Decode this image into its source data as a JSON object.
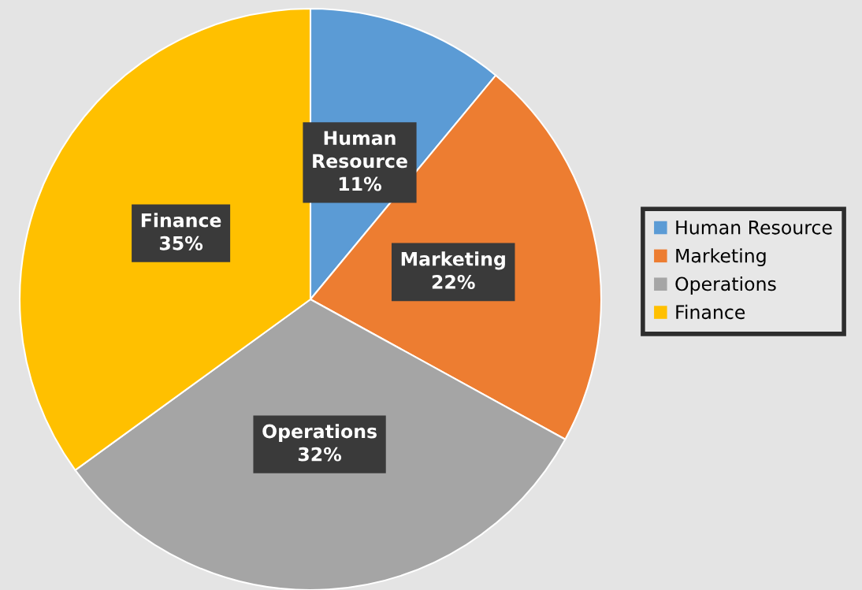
{
  "chart_data": {
    "type": "pie",
    "categories": [
      "Human Resource",
      "Marketing",
      "Operations",
      "Finance"
    ],
    "values": [
      11,
      22,
      32,
      35
    ],
    "colors": [
      "#5b9bd5",
      "#ed7d31",
      "#a5a5a5",
      "#ffc000"
    ],
    "value_labels": [
      "11%",
      "22%",
      "32%",
      "35%"
    ],
    "legend": "right"
  }
}
